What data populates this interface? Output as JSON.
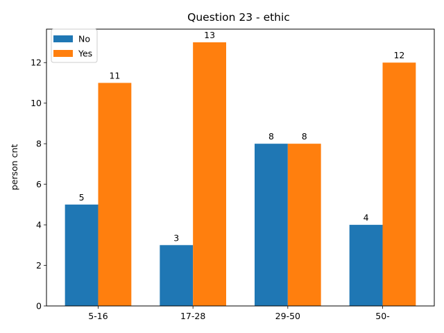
{
  "chart_data": {
    "type": "bar",
    "title": "Question 23 - ethic",
    "xlabel": "",
    "ylabel": "person cnt",
    "categories": [
      "5-16",
      "17-28",
      "29-50",
      "50-"
    ],
    "series": [
      {
        "name": "No",
        "values": [
          5,
          3,
          8,
          4
        ],
        "color": "#1f77b4"
      },
      {
        "name": "Yes",
        "values": [
          11,
          13,
          8,
          12
        ],
        "color": "#ff7f0e"
      }
    ],
    "ylim": [
      0,
      13.65
    ],
    "yticks": [
      0,
      2,
      4,
      6,
      8,
      10,
      12
    ],
    "grid": false,
    "legend_position": "top-left"
  }
}
